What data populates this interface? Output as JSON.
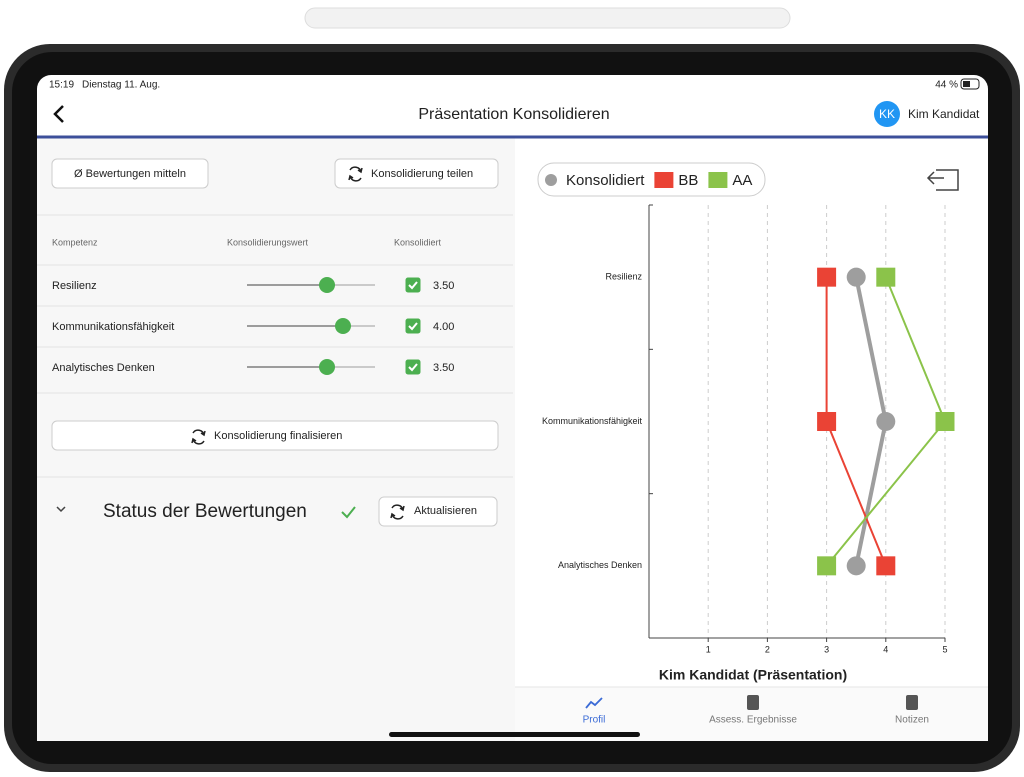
{
  "status_bar": {
    "time": "15:19",
    "date": "Dienstag 11. Aug.",
    "battery": "44 %"
  },
  "header": {
    "title": "Präsentation Konsolidieren",
    "avatar": "KK",
    "user": "Kim Kandidat"
  },
  "toolbar": {
    "average_button": "Ø Bewertungen mitteln",
    "share_button": "Konsolidierung teilen"
  },
  "table": {
    "columns": [
      "Kompetenz",
      "Konsolidierungswert",
      "Konsolidiert"
    ],
    "slider_min": 1,
    "slider_max": 5,
    "rows": [
      {
        "name": "Resilienz",
        "value": 3.5,
        "value_label": "3.50",
        "consolidated": true
      },
      {
        "name": "Kommunikationsfähigkeit",
        "value": 4,
        "value_label": "4.00",
        "consolidated": true
      },
      {
        "name": "Analytisches Denken",
        "value": 3.5,
        "value_label": "3.50",
        "consolidated": true
      }
    ]
  },
  "finalize_button": "Konsolidierung finalisieren",
  "status": {
    "title": "Status der Bewertungen",
    "refresh_button": "Aktualisieren"
  },
  "chart_data": {
    "type": "line",
    "title": "Kim Kandidat (Präsentation)",
    "categories": [
      "Resilienz",
      "Kommunikationsfähigkeit",
      "Analytisches Denken"
    ],
    "series": [
      {
        "name": "Konsolidiert",
        "color": "#9e9e9e",
        "marker": "circle",
        "values": [
          3.5,
          4,
          3.5
        ]
      },
      {
        "name": "BB",
        "color": "#ea4335",
        "marker": "square",
        "values": [
          3,
          3,
          4
        ]
      },
      {
        "name": "AA",
        "color": "#8bc34a",
        "marker": "square",
        "values": [
          4,
          5,
          3
        ]
      }
    ],
    "xlim": [
      0,
      5
    ],
    "xticks": [
      1,
      2,
      3,
      4,
      5
    ],
    "grid": true
  },
  "tabs": [
    {
      "label": "Profil",
      "active": true
    },
    {
      "label": "Assess. Ergebnisse",
      "active": false
    },
    {
      "label": "Notizen",
      "active": false
    }
  ]
}
